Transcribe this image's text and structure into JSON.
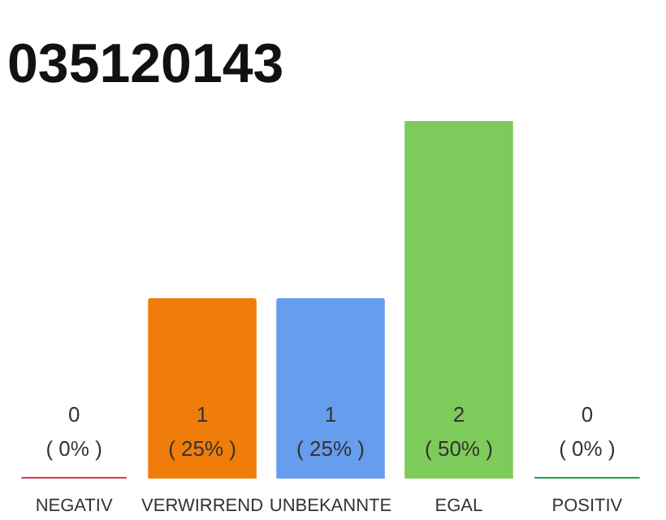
{
  "chart_data": {
    "type": "bar",
    "title": "035120143",
    "categories": [
      "NEGATIV",
      "VERWIRREND",
      "UNBEKANNTE",
      "EGAL",
      "POSITIV"
    ],
    "values": [
      0,
      1,
      1,
      2,
      0
    ],
    "colors": [
      "#e8344a",
      "#f07d0a",
      "#679ded",
      "#7dcb5a",
      "#1aa34a"
    ],
    "tick_labels": "x",
    "grid": false,
    "value_labels": [
      "0\n( 0% )",
      "1\n( 25% )",
      "1\n( 25% )",
      "2\n( 50% )",
      "0\n( 0% )"
    ]
  }
}
